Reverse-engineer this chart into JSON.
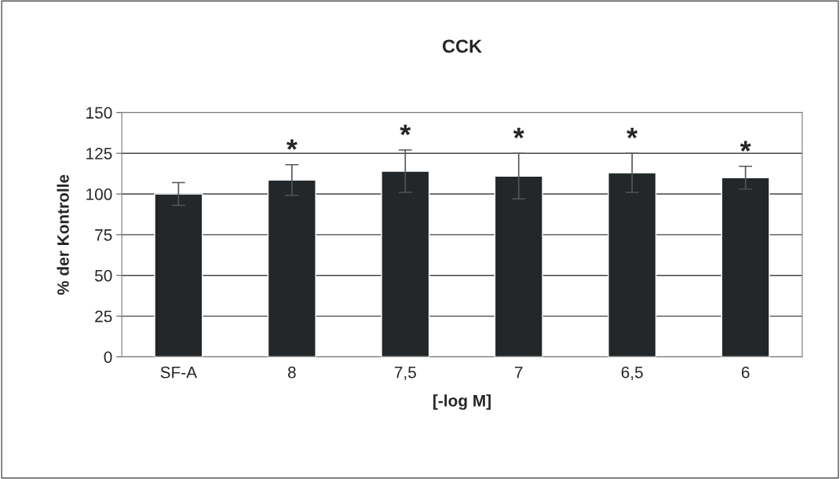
{
  "chart_data": {
    "type": "bar",
    "title": "CCK",
    "xlabel": "[-log M]",
    "ylabel": "% der Kontrolle",
    "categories": [
      "SF-A",
      "8",
      "7,5",
      "7",
      "6,5",
      "6"
    ],
    "values": [
      100,
      108.6,
      114,
      111,
      113,
      110
    ],
    "errors": [
      7,
      9.4,
      13,
      14,
      12,
      7
    ],
    "color": "#232729",
    "ylim": [
      0,
      150
    ],
    "yticks": [
      0,
      25,
      50,
      75,
      100,
      125,
      150
    ],
    "grid": "y",
    "legend": false,
    "annotations": [
      {
        "text": "*",
        "x": "8",
        "y": 118
      },
      {
        "text": "*",
        "x": "7,5",
        "y": 127
      },
      {
        "text": "*",
        "x": "7",
        "y": 125
      },
      {
        "text": "*",
        "x": "6,5",
        "y": 125
      },
      {
        "text": "*",
        "x": "6",
        "y": 117
      }
    ]
  }
}
